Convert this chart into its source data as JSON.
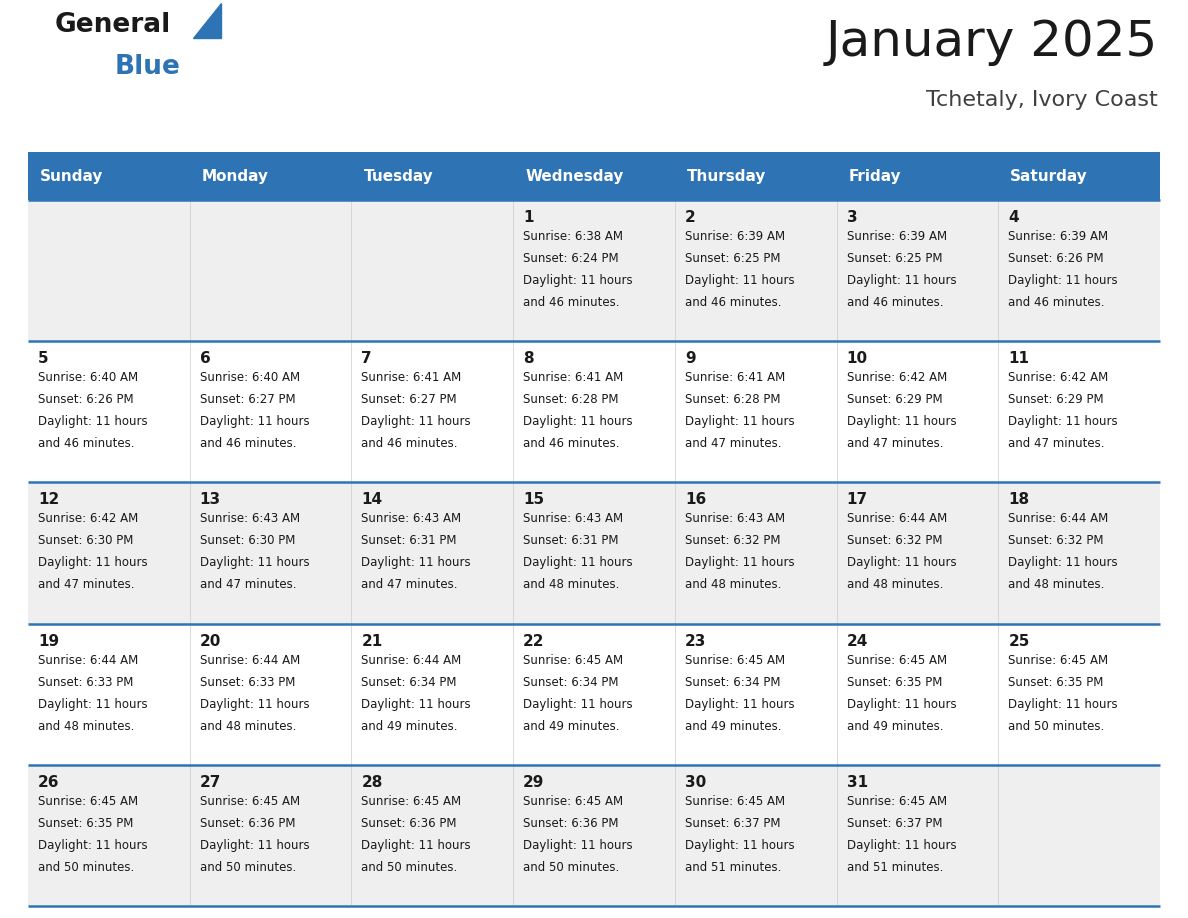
{
  "title": "January 2025",
  "subtitle": "Tchetaly, Ivory Coast",
  "days_of_week": [
    "Sunday",
    "Monday",
    "Tuesday",
    "Wednesday",
    "Thursday",
    "Friday",
    "Saturday"
  ],
  "header_bg": "#2E74B5",
  "header_text_color": "#FFFFFF",
  "row_bg_odd": "#EFEFEF",
  "row_bg_even": "#FFFFFF",
  "cell_text_color": "#1A1A1A",
  "border_color": "#2E74B5",
  "calendar_data": [
    [
      null,
      null,
      null,
      {
        "day": 1,
        "sunrise": "6:38 AM",
        "sunset": "6:24 PM",
        "daylight": "11 hours\nand 46 minutes."
      },
      {
        "day": 2,
        "sunrise": "6:39 AM",
        "sunset": "6:25 PM",
        "daylight": "11 hours\nand 46 minutes."
      },
      {
        "day": 3,
        "sunrise": "6:39 AM",
        "sunset": "6:25 PM",
        "daylight": "11 hours\nand 46 minutes."
      },
      {
        "day": 4,
        "sunrise": "6:39 AM",
        "sunset": "6:26 PM",
        "daylight": "11 hours\nand 46 minutes."
      }
    ],
    [
      {
        "day": 5,
        "sunrise": "6:40 AM",
        "sunset": "6:26 PM",
        "daylight": "11 hours\nand 46 minutes."
      },
      {
        "day": 6,
        "sunrise": "6:40 AM",
        "sunset": "6:27 PM",
        "daylight": "11 hours\nand 46 minutes."
      },
      {
        "day": 7,
        "sunrise": "6:41 AM",
        "sunset": "6:27 PM",
        "daylight": "11 hours\nand 46 minutes."
      },
      {
        "day": 8,
        "sunrise": "6:41 AM",
        "sunset": "6:28 PM",
        "daylight": "11 hours\nand 46 minutes."
      },
      {
        "day": 9,
        "sunrise": "6:41 AM",
        "sunset": "6:28 PM",
        "daylight": "11 hours\nand 47 minutes."
      },
      {
        "day": 10,
        "sunrise": "6:42 AM",
        "sunset": "6:29 PM",
        "daylight": "11 hours\nand 47 minutes."
      },
      {
        "day": 11,
        "sunrise": "6:42 AM",
        "sunset": "6:29 PM",
        "daylight": "11 hours\nand 47 minutes."
      }
    ],
    [
      {
        "day": 12,
        "sunrise": "6:42 AM",
        "sunset": "6:30 PM",
        "daylight": "11 hours\nand 47 minutes."
      },
      {
        "day": 13,
        "sunrise": "6:43 AM",
        "sunset": "6:30 PM",
        "daylight": "11 hours\nand 47 minutes."
      },
      {
        "day": 14,
        "sunrise": "6:43 AM",
        "sunset": "6:31 PM",
        "daylight": "11 hours\nand 47 minutes."
      },
      {
        "day": 15,
        "sunrise": "6:43 AM",
        "sunset": "6:31 PM",
        "daylight": "11 hours\nand 48 minutes."
      },
      {
        "day": 16,
        "sunrise": "6:43 AM",
        "sunset": "6:32 PM",
        "daylight": "11 hours\nand 48 minutes."
      },
      {
        "day": 17,
        "sunrise": "6:44 AM",
        "sunset": "6:32 PM",
        "daylight": "11 hours\nand 48 minutes."
      },
      {
        "day": 18,
        "sunrise": "6:44 AM",
        "sunset": "6:32 PM",
        "daylight": "11 hours\nand 48 minutes."
      }
    ],
    [
      {
        "day": 19,
        "sunrise": "6:44 AM",
        "sunset": "6:33 PM",
        "daylight": "11 hours\nand 48 minutes."
      },
      {
        "day": 20,
        "sunrise": "6:44 AM",
        "sunset": "6:33 PM",
        "daylight": "11 hours\nand 48 minutes."
      },
      {
        "day": 21,
        "sunrise": "6:44 AM",
        "sunset": "6:34 PM",
        "daylight": "11 hours\nand 49 minutes."
      },
      {
        "day": 22,
        "sunrise": "6:45 AM",
        "sunset": "6:34 PM",
        "daylight": "11 hours\nand 49 minutes."
      },
      {
        "day": 23,
        "sunrise": "6:45 AM",
        "sunset": "6:34 PM",
        "daylight": "11 hours\nand 49 minutes."
      },
      {
        "day": 24,
        "sunrise": "6:45 AM",
        "sunset": "6:35 PM",
        "daylight": "11 hours\nand 49 minutes."
      },
      {
        "day": 25,
        "sunrise": "6:45 AM",
        "sunset": "6:35 PM",
        "daylight": "11 hours\nand 50 minutes."
      }
    ],
    [
      {
        "day": 26,
        "sunrise": "6:45 AM",
        "sunset": "6:35 PM",
        "daylight": "11 hours\nand 50 minutes."
      },
      {
        "day": 27,
        "sunrise": "6:45 AM",
        "sunset": "6:36 PM",
        "daylight": "11 hours\nand 50 minutes."
      },
      {
        "day": 28,
        "sunrise": "6:45 AM",
        "sunset": "6:36 PM",
        "daylight": "11 hours\nand 50 minutes."
      },
      {
        "day": 29,
        "sunrise": "6:45 AM",
        "sunset": "6:36 PM",
        "daylight": "11 hours\nand 50 minutes."
      },
      {
        "day": 30,
        "sunrise": "6:45 AM",
        "sunset": "6:37 PM",
        "daylight": "11 hours\nand 51 minutes."
      },
      {
        "day": 31,
        "sunrise": "6:45 AM",
        "sunset": "6:37 PM",
        "daylight": "11 hours\nand 51 minutes."
      },
      null
    ]
  ],
  "fig_width": 11.88,
  "fig_height": 9.18,
  "dpi": 100
}
